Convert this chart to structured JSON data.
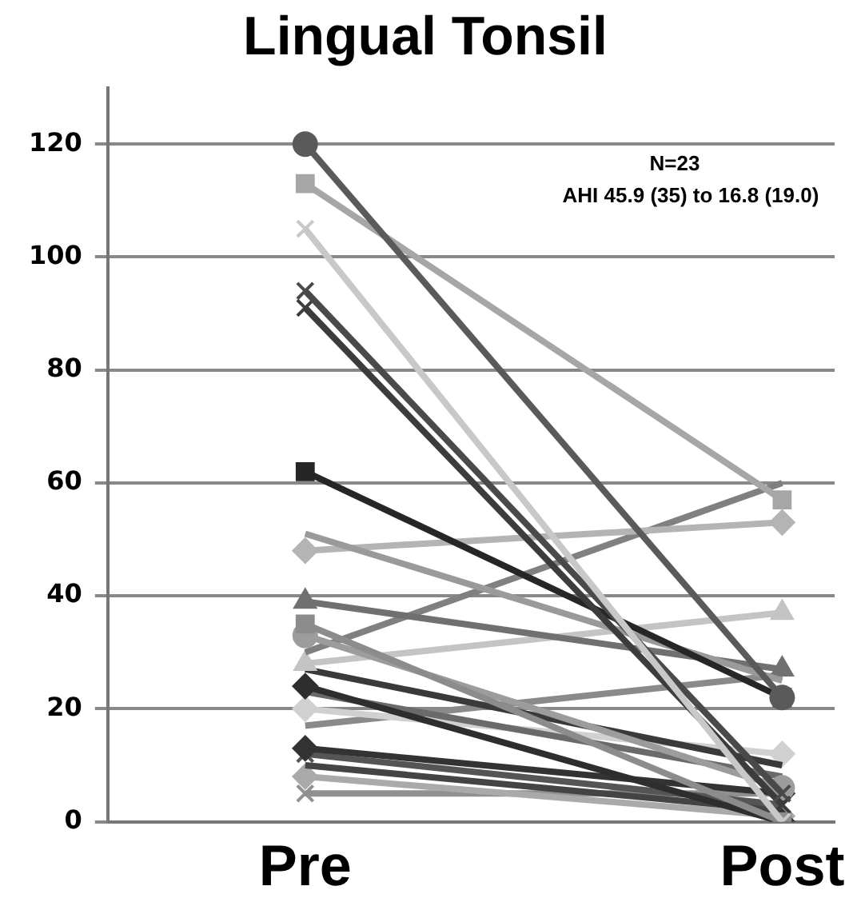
{
  "chart_data": {
    "type": "line",
    "title": "Lingual Tonsil",
    "categories": [
      "Pre",
      "Post"
    ],
    "ylim": [
      0,
      130
    ],
    "yticks": [
      0,
      20,
      40,
      60,
      80,
      100,
      120
    ],
    "grid": "y",
    "legend": false,
    "annotations": [
      "N=23",
      "AHI 45.9 (35) to 16.8 (19.0)"
    ],
    "series": [
      {
        "color": "#5a5a5a",
        "marker": "circle",
        "values": [
          120,
          22
        ]
      },
      {
        "color": "#a6a6a6",
        "marker": "square",
        "values": [
          113,
          57
        ]
      },
      {
        "color": "#c8c8c8",
        "marker": "cross",
        "values": [
          105,
          0
        ]
      },
      {
        "color": "#4a4a4a",
        "marker": "cross",
        "values": [
          94,
          5
        ]
      },
      {
        "color": "#3c3c3c",
        "marker": "cross",
        "values": [
          91,
          3
        ]
      },
      {
        "color": "#262626",
        "marker": "square",
        "values": [
          62,
          22
        ]
      },
      {
        "color": "#9a9a9a",
        "marker": "none",
        "values": [
          51,
          25
        ]
      },
      {
        "color": "#b4b4b4",
        "marker": "diamond",
        "values": [
          48,
          53
        ]
      },
      {
        "color": "#707070",
        "marker": "triangle",
        "values": [
          39,
          27
        ]
      },
      {
        "color": "#8c8c8c",
        "marker": "square",
        "values": [
          35,
          0
        ]
      },
      {
        "color": "#9c9c9c",
        "marker": "circle",
        "values": [
          33,
          6
        ]
      },
      {
        "color": "#808080",
        "marker": "none",
        "values": [
          30,
          60
        ]
      },
      {
        "color": "#c4c4c4",
        "marker": "triangle",
        "values": [
          28,
          37
        ]
      },
      {
        "color": "#3a3a3a",
        "marker": "none",
        "values": [
          27,
          10
        ]
      },
      {
        "color": "#2e2e2e",
        "marker": "diamond",
        "values": [
          24,
          0
        ]
      },
      {
        "color": "#6a6a6a",
        "marker": "none",
        "values": [
          23,
          8
        ]
      },
      {
        "color": "#d0d0d0",
        "marker": "diamond",
        "values": [
          20,
          12
        ]
      },
      {
        "color": "#8a8a8a",
        "marker": "none",
        "values": [
          17,
          26
        ]
      },
      {
        "color": "#333333",
        "marker": "diamond",
        "values": [
          13,
          5
        ]
      },
      {
        "color": "#555555",
        "marker": "cross",
        "values": [
          12,
          3
        ]
      },
      {
        "color": "#444444",
        "marker": "none",
        "values": [
          10,
          2
        ]
      },
      {
        "color": "#aaaaaa",
        "marker": "diamond",
        "values": [
          8,
          1
        ]
      },
      {
        "color": "#909090",
        "marker": "cross",
        "values": [
          5,
          5
        ]
      }
    ]
  }
}
